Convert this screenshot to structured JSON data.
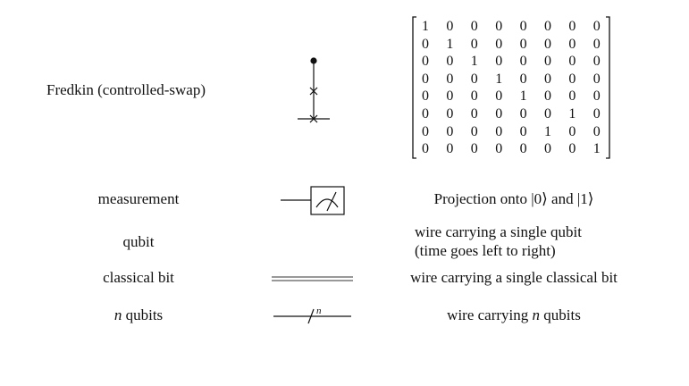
{
  "rows": [
    {
      "id": "fredkin",
      "name": "Fredkin (controlled-swap)",
      "description": ""
    },
    {
      "id": "measurement",
      "name": "measurement",
      "description": "Projection onto |0⟩ and |1⟩"
    },
    {
      "id": "qubit",
      "name": "qubit",
      "description_line1": "wire carrying a single qubit",
      "description_line2": "(time goes left to right)"
    },
    {
      "id": "classical",
      "name": "classical bit",
      "description": "wire carrying a single classical bit"
    },
    {
      "id": "nqubits",
      "name_var": "n",
      "name_rest": " qubits",
      "description_pre": "wire carrying ",
      "description_var": "n",
      "description_post": " qubits",
      "wire_label": "n"
    }
  ],
  "fredkin_matrix": [
    [
      "1",
      "0",
      "0",
      "0",
      "0",
      "0",
      "0",
      "0"
    ],
    [
      "0",
      "1",
      "0",
      "0",
      "0",
      "0",
      "0",
      "0"
    ],
    [
      "0",
      "0",
      "1",
      "0",
      "0",
      "0",
      "0",
      "0"
    ],
    [
      "0",
      "0",
      "0",
      "1",
      "0",
      "0",
      "0",
      "0"
    ],
    [
      "0",
      "0",
      "0",
      "0",
      "1",
      "0",
      "0",
      "0"
    ],
    [
      "0",
      "0",
      "0",
      "0",
      "0",
      "0",
      "1",
      "0"
    ],
    [
      "0",
      "0",
      "0",
      "0",
      "0",
      "1",
      "0",
      "0"
    ],
    [
      "0",
      "0",
      "0",
      "0",
      "0",
      "0",
      "0",
      "1"
    ]
  ]
}
